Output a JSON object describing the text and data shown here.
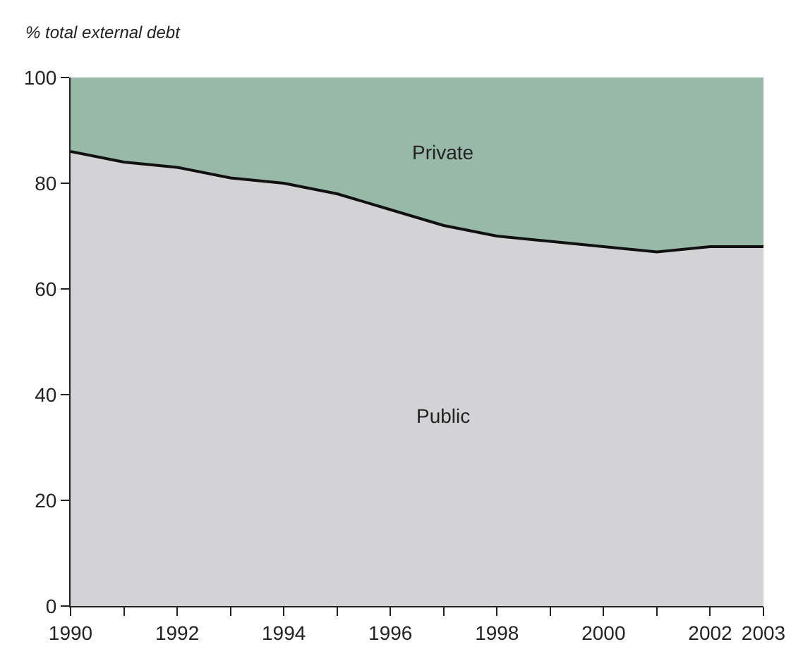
{
  "chart_data": {
    "type": "area",
    "stacked": true,
    "ylabel": "% total external debt",
    "x": [
      1990,
      1991,
      1992,
      1993,
      1994,
      1995,
      1996,
      1997,
      1998,
      1999,
      2000,
      2001,
      2002,
      2003
    ],
    "series": [
      {
        "name": "Public",
        "color": "#d3d3d5",
        "values": [
          86,
          84,
          83,
          81,
          80,
          78,
          75,
          72,
          70,
          69,
          68,
          67,
          68,
          68
        ]
      },
      {
        "name": "Private",
        "color": "#98b8a8",
        "values": [
          14,
          16,
          17,
          19,
          20,
          22,
          25,
          28,
          30,
          31,
          32,
          33,
          32,
          32
        ]
      }
    ],
    "xlim": [
      1990,
      2003
    ],
    "xticks": [
      1990,
      {
        "value": 1991,
        "label": null
      },
      1992,
      {
        "value": 1993,
        "label": null
      },
      1994,
      {
        "value": 1995,
        "label": null
      },
      1996,
      {
        "value": 1997,
        "label": null
      },
      1998,
      {
        "value": 1999,
        "label": null
      },
      2000,
      {
        "value": 2001,
        "label": null
      },
      2002,
      2003
    ],
    "ylim": [
      0,
      100
    ],
    "yticks": [
      0,
      20,
      40,
      60,
      80,
      100
    ],
    "legend": false
  }
}
